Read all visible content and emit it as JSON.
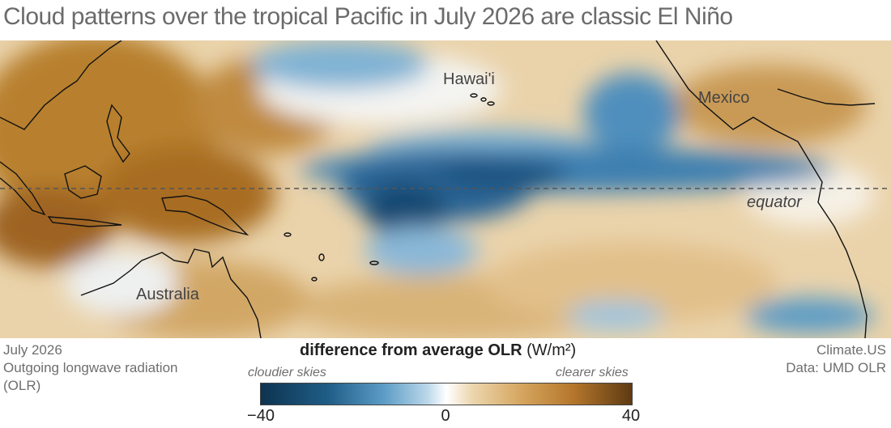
{
  "title": "Cloud patterns over the tropical Pacific in July 2026 are classic El Niño",
  "map": {
    "labels": {
      "hawaii": "Hawai'i",
      "mexico": "Mexico",
      "equator": "equator",
      "australia": "Australia"
    },
    "colors": {
      "cloudier": "#1f5d86",
      "clearer": "#b5772c",
      "neutral": "#ffffff",
      "coastline": "#111111"
    }
  },
  "footer": {
    "left": [
      "July 2026",
      "Outgoing longwave radiation",
      "(OLR)"
    ],
    "right": [
      "Climate.US",
      "Data: UMD OLR"
    ]
  },
  "legend": {
    "title": "difference from average OLR",
    "unit": "(W/m²)",
    "cloudier": "cloudier skies",
    "clearer": "clearer skies",
    "ticks": [
      "−40",
      "0",
      "40"
    ],
    "range": [
      -40,
      40
    ]
  }
}
